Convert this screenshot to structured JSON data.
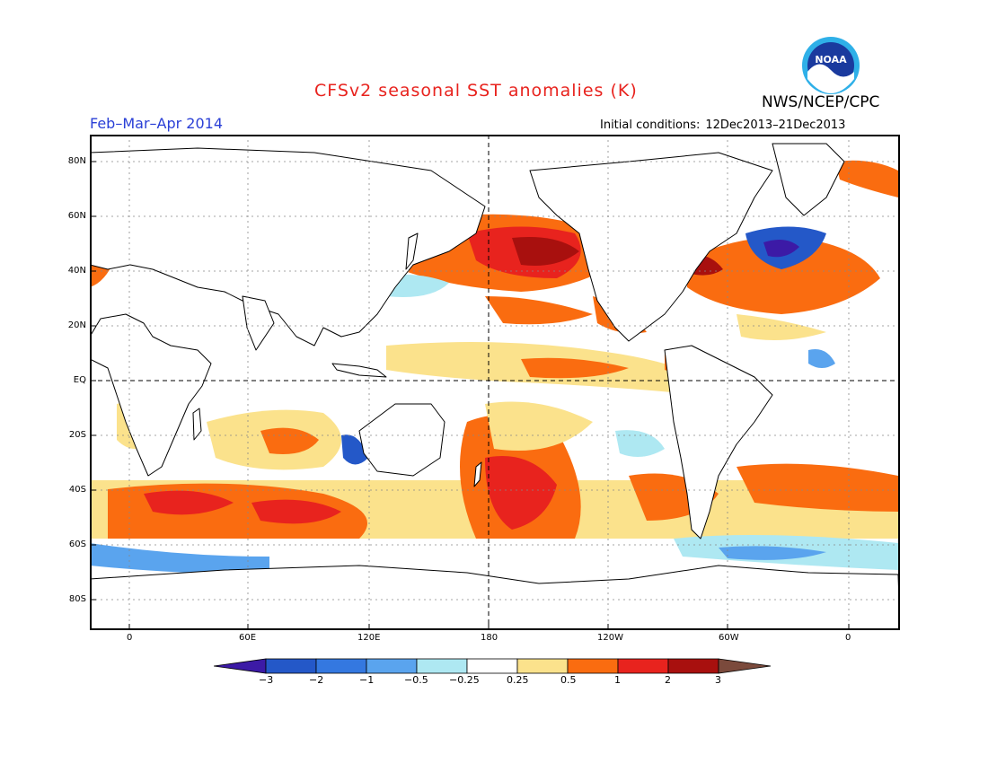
{
  "header": {
    "title": "CFSv2 seasonal SST anomalies (K)",
    "organization": "NWS/NCEP/CPC",
    "period": "Feb–Mar–Apr 2014",
    "initial_conditions_label": "Initial conditions:",
    "initial_conditions_value": "12Dec2013–21Dec2013",
    "logo_text": "NOAA"
  },
  "axes": {
    "lat_labels": [
      "80N",
      "60N",
      "40N",
      "20N",
      "EQ",
      "20S",
      "40S",
      "60S",
      "80S"
    ],
    "lon_labels": [
      "0",
      "60E",
      "120E",
      "180",
      "120W",
      "60W",
      "0"
    ]
  },
  "colorbar": {
    "ticks": [
      "−3",
      "−2",
      "−1",
      "−0.5",
      "−0.25",
      "0.25",
      "0.5",
      "1",
      "2",
      "3"
    ],
    "colors": [
      "#3c1aa6",
      "#2458c8",
      "#3478e0",
      "#5aa4ee",
      "#aee8f2",
      "#ffffff",
      "#fbe28c",
      "#fa6c10",
      "#e8231e",
      "#a8100e",
      "#7b4a3c"
    ]
  },
  "colors": {
    "title": "#e8231e",
    "period": "#2a3fd6",
    "land": "#ffffff",
    "coast": "#000000"
  }
}
